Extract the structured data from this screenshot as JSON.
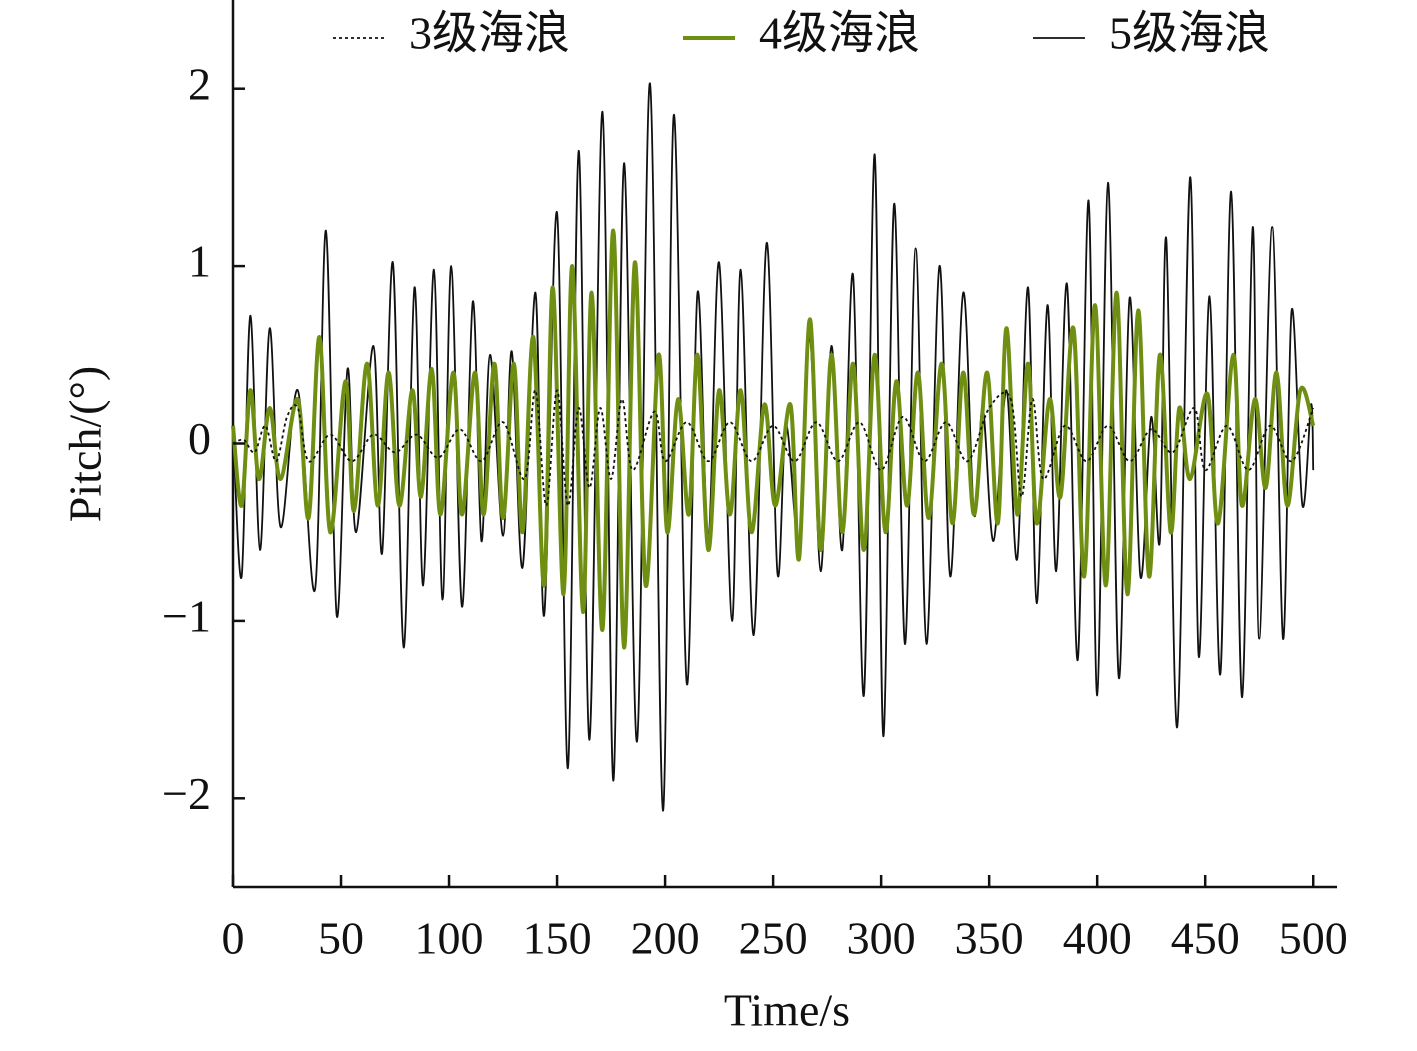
{
  "chart_data": {
    "type": "line",
    "xlabel": "Time/s",
    "ylabel": "Pitch/(°)",
    "xlim": [
      0,
      511
    ],
    "ylim": [
      -2.5,
      2.5
    ],
    "xticks": [
      0,
      50,
      100,
      150,
      200,
      250,
      300,
      350,
      400,
      450,
      500
    ],
    "yticks": [
      {
        "value": -2,
        "label": "−2"
      },
      {
        "value": -1,
        "label": "−1"
      },
      0,
      1,
      2
    ],
    "legend": "top",
    "series": [
      {
        "name": "3级海浪",
        "color": "#111111",
        "line_style": "dotted",
        "line_width": 1.8,
        "x": [
          0,
          5,
          10,
          15,
          20,
          25,
          30,
          35,
          45,
          55,
          65,
          75,
          85,
          95,
          105,
          115,
          125,
          135,
          140,
          145,
          150,
          155,
          160,
          165,
          170,
          175,
          180,
          185,
          195,
          200,
          210,
          220,
          230,
          240,
          250,
          260,
          270,
          280,
          290,
          300,
          310,
          320,
          330,
          340,
          350,
          360,
          365,
          370,
          375,
          385,
          395,
          405,
          415,
          425,
          435,
          445,
          450,
          460,
          470,
          480,
          490,
          500
        ],
        "values": [
          0,
          0.02,
          -0.05,
          0.1,
          -0.1,
          0.15,
          0.2,
          -0.1,
          0.05,
          -0.1,
          0.05,
          -0.05,
          0.05,
          -0.08,
          0.08,
          -0.1,
          0.12,
          -0.2,
          0.3,
          -0.35,
          0.3,
          -0.35,
          0.2,
          -0.25,
          0.2,
          -0.2,
          0.25,
          -0.15,
          0.18,
          -0.1,
          0.12,
          -0.1,
          0.12,
          -0.1,
          0.1,
          -0.1,
          0.12,
          -0.1,
          0.12,
          -0.15,
          0.15,
          -0.1,
          0.12,
          -0.1,
          0.2,
          0.25,
          -0.3,
          0.25,
          -0.2,
          0.1,
          -0.1,
          0.1,
          -0.1,
          0.08,
          -0.05,
          0.2,
          -0.15,
          0.1,
          -0.15,
          0.1,
          -0.1,
          0.2
        ]
      },
      {
        "name": "4级海浪",
        "color": "#6f8f12",
        "line_style": "solid",
        "line_width": 4,
        "x": [
          0,
          4,
          8,
          12,
          17,
          22,
          30,
          35,
          40,
          45,
          52,
          56,
          62,
          67,
          72,
          77,
          83,
          87,
          92,
          96,
          102,
          106,
          112,
          116,
          121,
          125,
          130,
          134,
          139,
          144,
          148,
          153,
          157,
          162,
          166,
          171,
          176,
          181,
          186,
          191,
          197,
          201,
          206,
          211,
          215,
          220,
          225,
          230,
          235,
          240,
          246,
          251,
          258,
          262,
          267,
          272,
          277,
          282,
          287,
          292,
          297,
          302,
          307,
          312,
          317,
          322,
          328,
          333,
          338,
          343,
          349,
          354,
          358,
          363,
          368,
          372,
          378,
          383,
          389,
          394,
          399,
          404,
          409,
          414,
          419,
          424,
          429,
          434,
          438,
          443,
          451,
          456,
          463,
          467,
          473,
          478,
          483,
          488,
          494,
          500
        ],
        "values": [
          0.1,
          -0.35,
          0.3,
          -0.2,
          0.2,
          -0.2,
          0.25,
          -0.42,
          0.6,
          -0.5,
          0.35,
          -0.38,
          0.45,
          -0.35,
          0.4,
          -0.35,
          0.3,
          -0.3,
          0.42,
          -0.4,
          0.4,
          -0.4,
          0.4,
          -0.4,
          0.45,
          -0.42,
          0.45,
          -0.5,
          0.6,
          -0.8,
          0.88,
          -0.85,
          1.0,
          -0.95,
          0.85,
          -1.05,
          1.2,
          -1.15,
          1.02,
          -0.8,
          0.5,
          -0.5,
          0.25,
          -0.4,
          0.5,
          -0.6,
          0.3,
          -0.4,
          0.3,
          -0.5,
          0.22,
          -0.35,
          0.22,
          -0.65,
          0.7,
          -0.6,
          0.5,
          -0.5,
          0.45,
          -0.6,
          0.5,
          -0.5,
          0.35,
          -0.35,
          0.4,
          -0.42,
          0.45,
          -0.45,
          0.4,
          -0.4,
          0.4,
          -0.45,
          0.65,
          -0.4,
          0.45,
          -0.45,
          0.25,
          -0.3,
          0.65,
          -0.75,
          0.78,
          -0.8,
          0.85,
          -0.85,
          0.75,
          -0.75,
          0.5,
          -0.5,
          0.2,
          -0.2,
          0.28,
          -0.45,
          0.5,
          -0.35,
          0.25,
          -0.25,
          0.4,
          -0.35,
          0.3,
          0.1
        ]
      },
      {
        "name": "5级海浪",
        "color": "#111111",
        "line_style": "solid",
        "line_width": 1.8,
        "x": [
          0,
          4,
          8,
          12.5,
          17,
          22,
          30,
          38,
          43,
          48,
          53,
          57,
          65,
          69,
          74,
          79,
          84,
          88,
          93,
          97,
          101,
          106,
          111,
          115,
          119,
          125,
          129,
          134,
          140,
          144,
          150,
          155,
          160,
          165,
          171,
          176,
          181,
          187,
          193,
          199,
          204,
          210,
          215,
          220,
          225,
          231,
          235,
          241,
          247,
          252,
          256,
          262,
          267,
          272,
          277,
          282,
          287,
          292,
          297,
          301,
          306,
          311,
          316,
          321,
          327,
          332,
          338,
          343,
          347,
          352,
          358,
          363,
          368,
          372,
          377,
          381,
          386,
          391,
          396,
          400,
          405,
          410,
          415,
          420,
          425,
          429,
          432,
          437,
          443,
          447,
          452,
          457,
          462,
          467,
          472,
          475,
          481,
          486,
          490,
          495,
          499,
          500
        ],
        "values": [
          0.1,
          -0.75,
          0.72,
          -0.6,
          0.65,
          -0.47,
          0.3,
          -0.82,
          1.2,
          -0.97,
          0.42,
          -0.5,
          0.55,
          -0.62,
          1.02,
          -1.15,
          0.88,
          -0.8,
          0.98,
          -0.88,
          1.0,
          -0.92,
          0.8,
          -0.55,
          0.5,
          -0.52,
          0.52,
          -0.7,
          0.85,
          -0.97,
          1.3,
          -1.83,
          1.65,
          -1.67,
          1.87,
          -1.9,
          1.58,
          -1.68,
          2.03,
          -2.07,
          1.85,
          -1.35,
          0.85,
          -0.55,
          1.02,
          -1.0,
          0.98,
          -1.08,
          1.13,
          -0.73,
          0.1,
          -0.55,
          0.6,
          -0.72,
          0.55,
          -0.6,
          0.95,
          -1.42,
          1.63,
          -1.65,
          1.35,
          -1.13,
          1.1,
          -1.13,
          1.0,
          -0.75,
          0.85,
          -0.4,
          0.2,
          -0.55,
          0.3,
          -0.65,
          0.88,
          -0.9,
          0.78,
          -0.72,
          0.9,
          -1.22,
          1.37,
          -1.42,
          1.47,
          -1.32,
          0.82,
          -0.75,
          0.15,
          -0.55,
          1.15,
          -1.6,
          1.5,
          -1.2,
          0.83,
          -1.3,
          1.42,
          -1.43,
          1.22,
          -1.1,
          1.22,
          -1.1,
          0.75,
          -0.35,
          0.22,
          -0.15
        ]
      }
    ]
  }
}
